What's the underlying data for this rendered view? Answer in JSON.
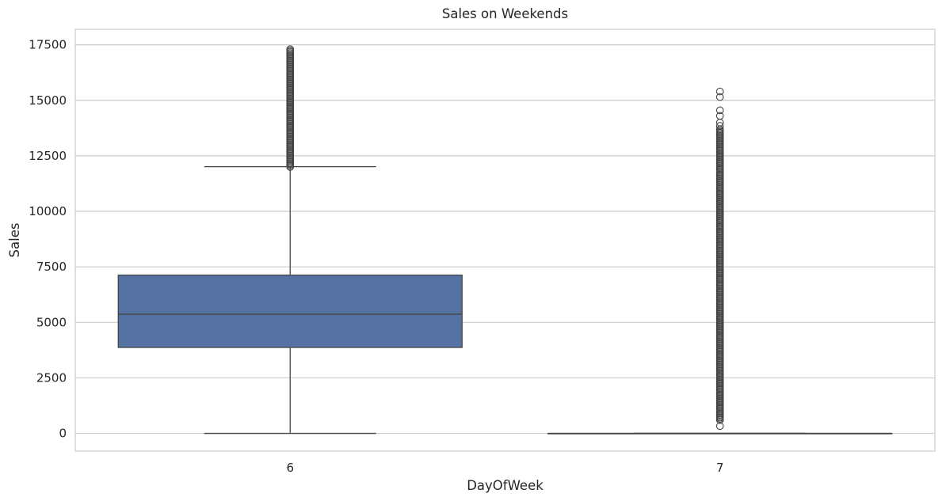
{
  "chart_data": {
    "type": "box",
    "title": "Sales on Weekends",
    "xlabel": "DayOfWeek",
    "ylabel": "Sales",
    "categories": [
      "6",
      "7"
    ],
    "ylim": [
      -800,
      18200
    ],
    "yticks": [
      0,
      2500,
      5000,
      7500,
      10000,
      12500,
      15000,
      17500
    ],
    "ytick_labels": [
      "0",
      "2500",
      "5000",
      "7500",
      "10000",
      "12500",
      "15000",
      "17500"
    ],
    "grid": true,
    "boxes": [
      {
        "category": "6",
        "whisker_low": 0,
        "q1": 3870,
        "median": 5370,
        "q3": 7130,
        "whisker_high": 12010,
        "outlier_range": [
          12000,
          17300
        ],
        "outliers_sparse": []
      },
      {
        "category": "7",
        "whisker_low": 0,
        "q1": 0,
        "median": 0,
        "q3": 0,
        "whisker_high": 0,
        "outlier_range": [
          600,
          13700
        ],
        "outliers_sparse": [
          330,
          13850,
          14000,
          14300,
          14550,
          15150,
          15400
        ]
      }
    ],
    "colors": {
      "box_fill": "#5572a3",
      "line": "#454545",
      "grid": "#cccccc",
      "background": "#ffffff"
    }
  }
}
